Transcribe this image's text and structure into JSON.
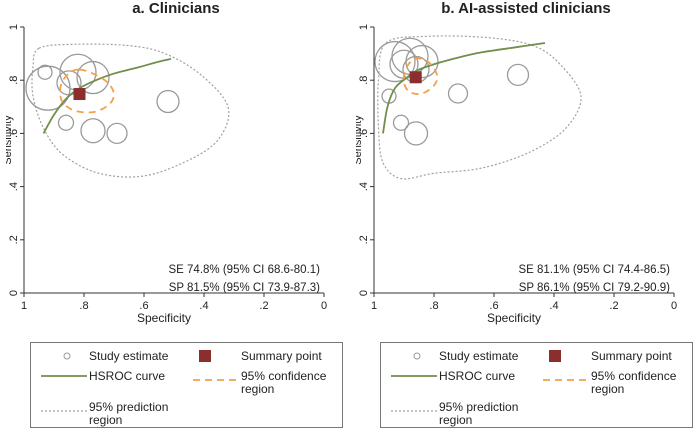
{
  "chart_data": [
    {
      "type": "scatter",
      "title": "a. Clinicians",
      "xlabel": "Specificity",
      "ylabel": "Sensitivity",
      "xlim": [
        1,
        0
      ],
      "ylim": [
        0,
        1
      ],
      "x_ticks": [
        "1",
        ".8",
        ".6",
        ".4",
        ".2",
        "0"
      ],
      "y_ticks": [
        "0",
        ".2",
        ".4",
        ".6",
        ".8",
        "1"
      ],
      "studies": [
        {
          "spec": 0.92,
          "sens": 0.77,
          "size": 1.7
        },
        {
          "spec": 0.82,
          "sens": 0.83,
          "size": 1.3
        },
        {
          "spec": 0.77,
          "sens": 0.81,
          "size": 1.1
        },
        {
          "spec": 0.85,
          "sens": 0.79,
          "size": 0.7
        },
        {
          "spec": 0.93,
          "sens": 0.83,
          "size": 0.2
        },
        {
          "spec": 0.77,
          "sens": 0.61,
          "size": 0.7
        },
        {
          "spec": 0.69,
          "sens": 0.6,
          "size": 0.5
        },
        {
          "spec": 0.52,
          "sens": 0.72,
          "size": 0.6
        },
        {
          "spec": 0.86,
          "sens": 0.64,
          "size": 0.25
        }
      ],
      "summary_point": {
        "spec": 0.815,
        "sens": 0.748
      },
      "hsroc_curve": [
        [
          0.935,
          0.6
        ],
        [
          0.9,
          0.67
        ],
        [
          0.86,
          0.73
        ],
        [
          0.815,
          0.77
        ],
        [
          0.76,
          0.8
        ],
        [
          0.7,
          0.825
        ],
        [
          0.62,
          0.848
        ],
        [
          0.55,
          0.87
        ],
        [
          0.51,
          0.88
        ]
      ],
      "confidence_region": [
        [
          0.815,
          0.84
        ],
        [
          0.77,
          0.825
        ],
        [
          0.72,
          0.79
        ],
        [
          0.7,
          0.745
        ],
        [
          0.72,
          0.705
        ],
        [
          0.77,
          0.68
        ],
        [
          0.83,
          0.685
        ],
        [
          0.87,
          0.715
        ],
        [
          0.88,
          0.76
        ],
        [
          0.87,
          0.8
        ],
        [
          0.845,
          0.83
        ]
      ],
      "prediction_region": [
        [
          0.95,
          0.92
        ],
        [
          0.83,
          0.935
        ],
        [
          0.65,
          0.93
        ],
        [
          0.53,
          0.9
        ],
        [
          0.41,
          0.82
        ],
        [
          0.32,
          0.7
        ],
        [
          0.35,
          0.58
        ],
        [
          0.45,
          0.5
        ],
        [
          0.6,
          0.44
        ],
        [
          0.75,
          0.45
        ],
        [
          0.87,
          0.52
        ],
        [
          0.935,
          0.62
        ],
        [
          0.97,
          0.74
        ],
        [
          0.97,
          0.85
        ]
      ],
      "annotations": [
        "SE 74.8% (95% CI 68.6-80.1)",
        "SP 81.5% (95% CI 73.9-87.3)"
      ],
      "legend_placement": "bottom",
      "colors": {
        "study": "#9a9a9a",
        "summary": "#8b2e2e",
        "hsroc": "#6f8f4a",
        "confidence": "#f2a14a",
        "prediction": "#a0a0a0",
        "axis": "#333333",
        "text": "#222222"
      }
    },
    {
      "type": "scatter",
      "title": "b. AI-assisted clinicians",
      "xlabel": "Specificity",
      "ylabel": "Sensitivity",
      "xlim": [
        1,
        0
      ],
      "ylim": [
        0,
        1
      ],
      "x_ticks": [
        "1",
        ".8",
        ".6",
        ".4",
        ".2",
        "0"
      ],
      "y_ticks": [
        "0",
        ".2",
        ".4",
        ".6",
        ".8",
        "1"
      ],
      "studies": [
        {
          "spec": 0.93,
          "sens": 0.87,
          "size": 1.5
        },
        {
          "spec": 0.88,
          "sens": 0.89,
          "size": 1.3
        },
        {
          "spec": 0.84,
          "sens": 0.87,
          "size": 1.1
        },
        {
          "spec": 0.9,
          "sens": 0.86,
          "size": 0.9
        },
        {
          "spec": 0.86,
          "sens": 0.84,
          "size": 0.8
        },
        {
          "spec": 0.52,
          "sens": 0.82,
          "size": 0.55
        },
        {
          "spec": 0.72,
          "sens": 0.75,
          "size": 0.45
        },
        {
          "spec": 0.86,
          "sens": 0.6,
          "size": 0.65
        },
        {
          "spec": 0.95,
          "sens": 0.74,
          "size": 0.2
        },
        {
          "spec": 0.91,
          "sens": 0.64,
          "size": 0.25
        }
      ],
      "summary_point": {
        "spec": 0.861,
        "sens": 0.811
      },
      "hsroc_curve": [
        [
          0.97,
          0.6
        ],
        [
          0.955,
          0.7
        ],
        [
          0.93,
          0.77
        ],
        [
          0.89,
          0.81
        ],
        [
          0.86,
          0.835
        ],
        [
          0.8,
          0.86
        ],
        [
          0.72,
          0.885
        ],
        [
          0.64,
          0.905
        ],
        [
          0.52,
          0.925
        ],
        [
          0.43,
          0.94
        ]
      ],
      "confidence_region": [
        [
          0.865,
          0.88
        ],
        [
          0.82,
          0.87
        ],
        [
          0.79,
          0.82
        ],
        [
          0.8,
          0.78
        ],
        [
          0.84,
          0.75
        ],
        [
          0.88,
          0.755
        ],
        [
          0.9,
          0.79
        ],
        [
          0.895,
          0.84
        ]
      ],
      "prediction_region": [
        [
          0.96,
          0.94
        ],
        [
          0.82,
          0.965
        ],
        [
          0.62,
          0.96
        ],
        [
          0.47,
          0.93
        ],
        [
          0.38,
          0.86
        ],
        [
          0.31,
          0.74
        ],
        [
          0.36,
          0.62
        ],
        [
          0.48,
          0.53
        ],
        [
          0.64,
          0.47
        ],
        [
          0.8,
          0.45
        ],
        [
          0.91,
          0.43
        ],
        [
          0.97,
          0.49
        ],
        [
          0.985,
          0.62
        ],
        [
          0.985,
          0.8
        ]
      ],
      "annotations": [
        "SE 81.1% (95% CI 74.4-86.5)",
        "SP 86.1% (95% CI 79.2-90.9)"
      ],
      "legend_placement": "bottom",
      "colors": {
        "study": "#9a9a9a",
        "summary": "#8b2e2e",
        "hsroc": "#6f8f4a",
        "confidence": "#f2a14a",
        "prediction": "#a0a0a0",
        "axis": "#333333",
        "text": "#222222"
      }
    }
  ],
  "legend": {
    "study_estimate": "Study estimate",
    "summary_point": "Summary point",
    "hsroc_curve": "HSROC curve",
    "confidence_region": "95% confidence region",
    "prediction_region": "95% prediction region"
  }
}
